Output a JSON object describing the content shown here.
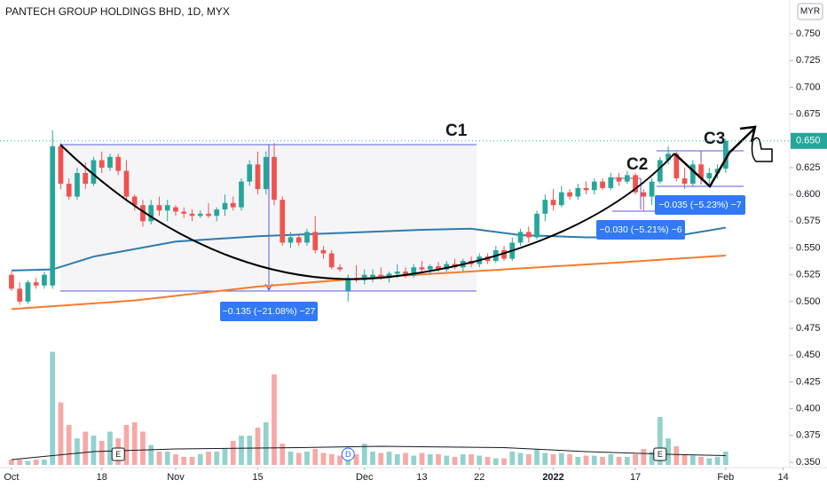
{
  "chart_data": {
    "type": "candlestick",
    "title": "PANTECH GROUP HOLDINGS BHD, 1D, MYX",
    "currency": "MYR",
    "up_color": "#26a69a",
    "down_color": "#ef5350",
    "ylim": [
      0.3384,
      0.7815
    ],
    "yticks": [
      {
        "value": 0.35,
        "label": "0.350"
      },
      {
        "value": 0.375,
        "label": "0.375"
      },
      {
        "value": 0.4,
        "label": "0.400"
      },
      {
        "value": 0.425,
        "label": "0.425"
      },
      {
        "value": 0.45,
        "label": "0.450"
      },
      {
        "value": 0.475,
        "label": "0.475"
      },
      {
        "value": 0.5,
        "label": "0.500"
      },
      {
        "value": 0.525,
        "label": "0.525"
      },
      {
        "value": 0.55,
        "label": "0.550"
      },
      {
        "value": 0.575,
        "label": "0.575"
      },
      {
        "value": 0.6,
        "label": "0.600"
      },
      {
        "value": 0.625,
        "label": "0.625"
      },
      {
        "value": 0.675,
        "label": "0.675"
      },
      {
        "value": 0.7,
        "label": "0.700"
      },
      {
        "value": 0.725,
        "label": "0.725"
      },
      {
        "value": 0.75,
        "label": "0.750"
      }
    ],
    "last_price": {
      "value": 0.65,
      "label": "0.650"
    },
    "xlim": [
      -1.4,
      94.8
    ],
    "xticks": [
      {
        "value": 0,
        "label": "Oct"
      },
      {
        "value": 11,
        "label": "18"
      },
      {
        "value": 20,
        "label": "Nov"
      },
      {
        "value": 30,
        "label": "15"
      },
      {
        "value": 43,
        "label": "Dec"
      },
      {
        "value": 50,
        "label": "13"
      },
      {
        "value": 57,
        "label": "22"
      },
      {
        "value": 66,
        "label": "2022"
      },
      {
        "value": 76,
        "label": "17"
      },
      {
        "value": 87,
        "label": "Feb"
      },
      {
        "value": 94,
        "label": "14"
      }
    ],
    "candles": [
      [
        0.525,
        0.528,
        0.51,
        0.512
      ],
      [
        0.512,
        0.518,
        0.497,
        0.5
      ],
      [
        0.5,
        0.52,
        0.498,
        0.518
      ],
      [
        0.518,
        0.522,
        0.512,
        0.515
      ],
      [
        0.515,
        0.528,
        0.512,
        0.525
      ],
      [
        0.515,
        0.66,
        0.512,
        0.645
      ],
      [
        0.645,
        0.648,
        0.605,
        0.61
      ],
      [
        0.61,
        0.615,
        0.595,
        0.598
      ],
      [
        0.598,
        0.625,
        0.595,
        0.62
      ],
      [
        0.62,
        0.63,
        0.605,
        0.61
      ],
      [
        0.61,
        0.635,
        0.608,
        0.632
      ],
      [
        0.632,
        0.64,
        0.62,
        0.625
      ],
      [
        0.625,
        0.638,
        0.622,
        0.635
      ],
      [
        0.635,
        0.638,
        0.618,
        0.622
      ],
      [
        0.622,
        0.632,
        0.595,
        0.598
      ],
      [
        0.598,
        0.6,
        0.585,
        0.59
      ],
      [
        0.59,
        0.595,
        0.57,
        0.575
      ],
      [
        0.575,
        0.595,
        0.572,
        0.59
      ],
      [
        0.59,
        0.598,
        0.58,
        0.585
      ],
      [
        0.585,
        0.595,
        0.575,
        0.59
      ],
      [
        0.588,
        0.59,
        0.58,
        0.584
      ],
      [
        0.584,
        0.588,
        0.578,
        0.582
      ],
      [
        0.582,
        0.586,
        0.575,
        0.58
      ],
      [
        0.58,
        0.585,
        0.578,
        0.582
      ],
      [
        0.582,
        0.592,
        0.578,
        0.58
      ],
      [
        0.58,
        0.588,
        0.575,
        0.586
      ],
      [
        0.586,
        0.6,
        0.58,
        0.592
      ],
      [
        0.592,
        0.598,
        0.585,
        0.588
      ],
      [
        0.588,
        0.615,
        0.585,
        0.612
      ],
      [
        0.612,
        0.632,
        0.608,
        0.628
      ],
      [
        0.628,
        0.64,
        0.6,
        0.605
      ],
      [
        0.605,
        0.64,
        0.6,
        0.635
      ],
      [
        0.635,
        0.648,
        0.59,
        0.595
      ],
      [
        0.595,
        0.598,
        0.552,
        0.555
      ],
      [
        0.555,
        0.565,
        0.55,
        0.56
      ],
      [
        0.56,
        0.562,
        0.552,
        0.555
      ],
      [
        0.555,
        0.568,
        0.552,
        0.565
      ],
      [
        0.565,
        0.58,
        0.545,
        0.548
      ],
      [
        0.548,
        0.552,
        0.54,
        0.545
      ],
      [
        0.545,
        0.548,
        0.53,
        0.532
      ],
      [
        0.532,
        0.535,
        0.528,
        0.53
      ],
      [
        0.51,
        0.525,
        0.5,
        0.522
      ],
      [
        0.522,
        0.534,
        0.518,
        0.52
      ],
      [
        0.52,
        0.53,
        0.516,
        0.525
      ],
      [
        0.522,
        0.53,
        0.518,
        0.525
      ],
      [
        0.525,
        0.532,
        0.52,
        0.522
      ],
      [
        0.522,
        0.528,
        0.518,
        0.526
      ],
      [
        0.526,
        0.535,
        0.522,
        0.528
      ],
      [
        0.528,
        0.532,
        0.522,
        0.524
      ],
      [
        0.524,
        0.535,
        0.522,
        0.532
      ],
      [
        0.532,
        0.538,
        0.526,
        0.53
      ],
      [
        0.53,
        0.535,
        0.525,
        0.533
      ],
      [
        0.533,
        0.537,
        0.528,
        0.53
      ],
      [
        0.53,
        0.538,
        0.528,
        0.535
      ],
      [
        0.535,
        0.54,
        0.53,
        0.532
      ],
      [
        0.532,
        0.54,
        0.528,
        0.538
      ],
      [
        0.538,
        0.542,
        0.532,
        0.535
      ],
      [
        0.535,
        0.545,
        0.532,
        0.542
      ],
      [
        0.542,
        0.545,
        0.535,
        0.538
      ],
      [
        0.538,
        0.552,
        0.536,
        0.548
      ],
      [
        0.548,
        0.552,
        0.538,
        0.54
      ],
      [
        0.54,
        0.56,
        0.538,
        0.555
      ],
      [
        0.555,
        0.568,
        0.552,
        0.565
      ],
      [
        0.565,
        0.57,
        0.555,
        0.56
      ],
      [
        0.56,
        0.585,
        0.558,
        0.582
      ],
      [
        0.582,
        0.6,
        0.575,
        0.595
      ],
      [
        0.595,
        0.605,
        0.585,
        0.59
      ],
      [
        0.59,
        0.608,
        0.588,
        0.602
      ],
      [
        0.602,
        0.605,
        0.595,
        0.598
      ],
      [
        0.598,
        0.61,
        0.595,
        0.606
      ],
      [
        0.606,
        0.612,
        0.6,
        0.604
      ],
      [
        0.604,
        0.615,
        0.6,
        0.612
      ],
      [
        0.612,
        0.615,
        0.604,
        0.606
      ],
      [
        0.606,
        0.62,
        0.604,
        0.616
      ],
      [
        0.616,
        0.62,
        0.608,
        0.612
      ],
      [
        0.612,
        0.622,
        0.61,
        0.618
      ],
      [
        0.618,
        0.62,
        0.6,
        0.602
      ],
      [
        0.602,
        0.605,
        0.585,
        0.598
      ],
      [
        0.598,
        0.615,
        0.59,
        0.612
      ],
      [
        0.612,
        0.635,
        0.61,
        0.632
      ],
      [
        0.632,
        0.645,
        0.628,
        0.638
      ],
      [
        0.638,
        0.64,
        0.612,
        0.615
      ],
      [
        0.615,
        0.625,
        0.605,
        0.61
      ],
      [
        0.61,
        0.632,
        0.608,
        0.628
      ],
      [
        0.628,
        0.632,
        0.612,
        0.615
      ],
      [
        0.615,
        0.625,
        0.61,
        0.62
      ],
      [
        0.62,
        0.628,
        0.615,
        0.624
      ],
      [
        0.624,
        0.652,
        0.62,
        0.65
      ]
    ],
    "volume_lim": [
      0,
      100
    ],
    "volumes": [
      4,
      4,
      3,
      4,
      4,
      85,
      47,
      30,
      20,
      25,
      22,
      18,
      25,
      20,
      30,
      32,
      25,
      15,
      10,
      10,
      8,
      6,
      6,
      8,
      10,
      10,
      12,
      18,
      22,
      22,
      28,
      32,
      68,
      16,
      10,
      9,
      10,
      12,
      9,
      8,
      7,
      8,
      8,
      16,
      10,
      9,
      10,
      8,
      9,
      7,
      9,
      8,
      8,
      7,
      6,
      8,
      8,
      7,
      6,
      5,
      5,
      10,
      9,
      8,
      12,
      9,
      8,
      9,
      8,
      6,
      7,
      7,
      6,
      8,
      6,
      6,
      8,
      12,
      10,
      36,
      20,
      14,
      8,
      7,
      6,
      5,
      6,
      10
    ],
    "volume_ma": {
      "color": "#131722",
      "x": [
        0,
        10,
        20,
        35,
        45,
        60,
        70,
        80,
        87
      ],
      "values": [
        4,
        10,
        12,
        13,
        14,
        13,
        10,
        8,
        7
      ]
    },
    "series": [
      {
        "color": "#2e7bab",
        "x": [
          0,
          5,
          10,
          20,
          30,
          40,
          50,
          56,
          62,
          70,
          80,
          87
        ],
        "values": [
          0.529,
          0.53,
          0.542,
          0.556,
          0.561,
          0.564,
          0.567,
          0.568,
          0.562,
          0.56,
          0.56,
          0.569
        ]
      },
      {
        "color": "#f57c2e",
        "x": [
          0,
          15,
          30,
          45,
          60,
          75,
          87
        ],
        "values": [
          0.493,
          0.501,
          0.514,
          0.523,
          0.53,
          0.537,
          0.543
        ]
      }
    ],
    "annotations": [
      "C1",
      "C2",
      "C3"
    ],
    "measures": [
      "−0.135 (−21.08%) −27",
      "−0.030 (−5.21%) −6",
      "−0.035 (−5.23%) −7"
    ],
    "events": [
      {
        "label": "E",
        "x": 13
      },
      {
        "label": "D",
        "x": 41
      },
      {
        "label": "E",
        "x": 79
      }
    ]
  }
}
